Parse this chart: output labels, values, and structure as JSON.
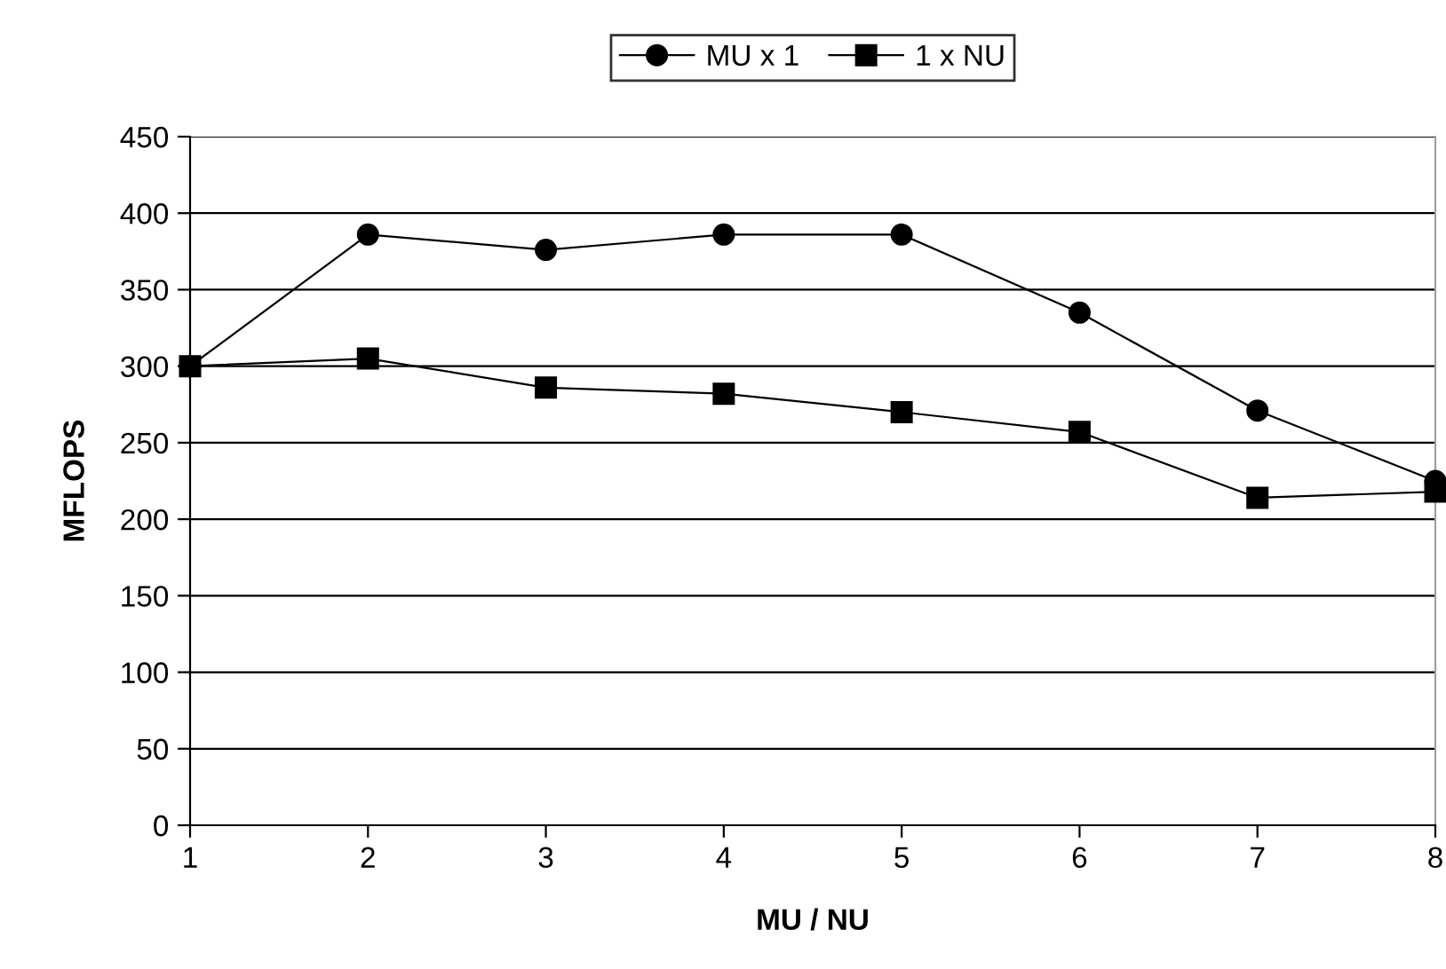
{
  "chart_data": {
    "type": "line",
    "xlabel": "MU / NU",
    "ylabel": "MFLOPS",
    "x": [
      1,
      2,
      3,
      4,
      5,
      6,
      7,
      8
    ],
    "series": [
      {
        "name": "MU x 1",
        "color": "#000000",
        "marker": "circle",
        "values": [
          300,
          386,
          376,
          386,
          386,
          335,
          271,
          225
        ]
      },
      {
        "name": "1 x NU",
        "color": "#000000",
        "marker": "square",
        "values": [
          300,
          305,
          286,
          282,
          270,
          257,
          214,
          218
        ]
      }
    ],
    "xlim": [
      1,
      8
    ],
    "xticks": [
      1,
      2,
      3,
      4,
      5,
      6,
      7,
      8
    ],
    "ylim": [
      0,
      450
    ],
    "yticks": [
      0,
      50,
      100,
      150,
      200,
      250,
      300,
      350,
      400,
      450
    ],
    "grid": "y",
    "legend": "top",
    "line_style": "solid"
  }
}
